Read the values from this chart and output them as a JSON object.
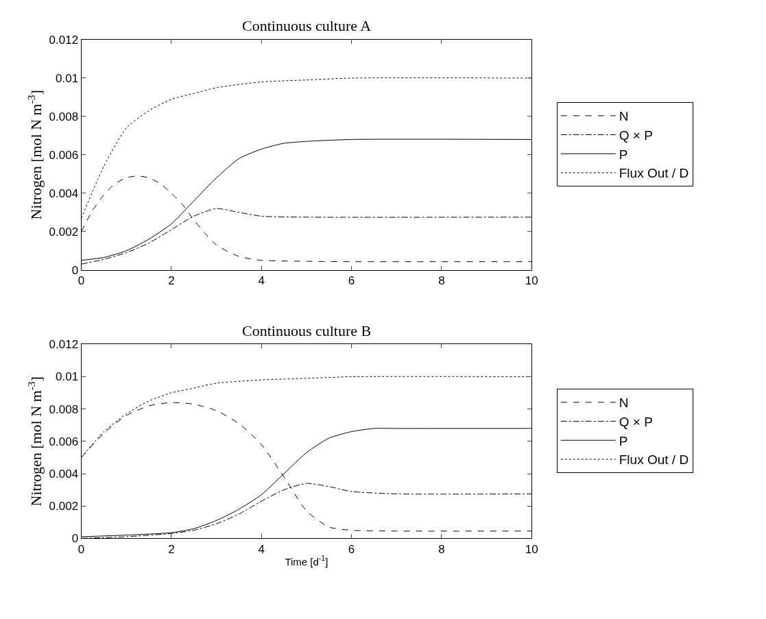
{
  "chart_data": [
    {
      "type": "line",
      "title": "Continuous culture A",
      "ylabel": "Nitrogen [mol N m$^{-3}$]",
      "xlim": [
        0,
        10
      ],
      "xticks": [
        0,
        2,
        4,
        6,
        8,
        10
      ],
      "ylim": [
        0,
        0.012
      ],
      "yticks": [
        0,
        0.002,
        0.004,
        0.006,
        0.008,
        0.01,
        0.012
      ],
      "grid": false,
      "legend": "right",
      "marker": "none",
      "series": [
        {
          "name": "N",
          "color": "#000000",
          "line_style": "dashed",
          "x": [
            0,
            0.25,
            0.5,
            0.75,
            1,
            1.25,
            1.5,
            1.75,
            2,
            2.25,
            2.5,
            2.75,
            3,
            3.5,
            4,
            5,
            6,
            10
          ],
          "values": [
            0.002,
            0.0031,
            0.0039,
            0.0045,
            0.0048,
            0.0049,
            0.0048,
            0.0045,
            0.004,
            0.0034,
            0.0026,
            0.0019,
            0.0013,
            0.0007,
            0.0005,
            0.00045,
            0.00043,
            0.00043
          ]
        },
        {
          "name": "Q × P",
          "color": "#000000",
          "line_style": "dashdot",
          "x": [
            0,
            0.5,
            1,
            1.5,
            2,
            2.5,
            3,
            3.5,
            4,
            5,
            10
          ],
          "values": [
            0.0003,
            0.00055,
            0.0009,
            0.0014,
            0.0021,
            0.0028,
            0.0032,
            0.003,
            0.0028,
            0.00275,
            0.00275
          ]
        },
        {
          "name": "P",
          "color": "#000000",
          "line_style": "solid",
          "x": [
            0,
            0.5,
            1,
            1.5,
            2,
            2.5,
            3,
            3.5,
            4,
            4.5,
            5,
            6,
            10
          ],
          "values": [
            0.0005,
            0.00065,
            0.001,
            0.0016,
            0.0024,
            0.0036,
            0.0048,
            0.0058,
            0.0063,
            0.0066,
            0.0067,
            0.0068,
            0.0068
          ]
        },
        {
          "name": "Flux Out / D",
          "color": "#000000",
          "line_style": "dotted",
          "x": [
            0,
            0.5,
            1,
            1.5,
            2,
            2.5,
            3,
            4,
            5,
            6,
            10
          ],
          "values": [
            0.0027,
            0.0054,
            0.0074,
            0.0083,
            0.0089,
            0.0092,
            0.0095,
            0.0098,
            0.0099,
            0.01,
            0.01
          ]
        }
      ]
    },
    {
      "type": "line",
      "title": "Continuous culture B",
      "xlabel": "Time [d$^{-1}$]",
      "ylabel": "Nitrogen [mol N m$^{-3}$]",
      "xlim": [
        0,
        10
      ],
      "xticks": [
        0,
        2,
        4,
        6,
        8,
        10
      ],
      "ylim": [
        0,
        0.012
      ],
      "yticks": [
        0,
        0.002,
        0.004,
        0.006,
        0.008,
        0.01,
        0.012
      ],
      "grid": false,
      "legend": "right",
      "marker": "none",
      "series": [
        {
          "name": "N",
          "color": "#000000",
          "line_style": "dashed",
          "x": [
            0,
            0.5,
            1,
            1.5,
            2,
            2.5,
            3,
            3.5,
            4,
            4.5,
            5,
            5.5,
            6,
            7,
            10
          ],
          "values": [
            0.005,
            0.0065,
            0.0076,
            0.0082,
            0.0084,
            0.0083,
            0.0079,
            0.0071,
            0.0058,
            0.0038,
            0.0017,
            0.0007,
            0.0005,
            0.00045,
            0.00045
          ]
        },
        {
          "name": "Q × P",
          "color": "#000000",
          "line_style": "dashdot",
          "x": [
            0,
            1,
            2,
            2.5,
            3,
            3.5,
            4,
            4.5,
            5,
            5.5,
            6,
            7,
            10
          ],
          "values": [
            0,
            0.0001,
            0.0003,
            0.0005,
            0.0009,
            0.0015,
            0.0023,
            0.003,
            0.0034,
            0.0032,
            0.0029,
            0.00275,
            0.00275
          ]
        },
        {
          "name": "P",
          "color": "#000000",
          "line_style": "solid",
          "x": [
            0,
            1,
            2,
            2.5,
            3,
            3.5,
            4,
            4.5,
            5,
            5.5,
            6,
            6.5,
            7,
            10
          ],
          "values": [
            0.0001,
            0.0002,
            0.00035,
            0.0006,
            0.0011,
            0.0018,
            0.0027,
            0.004,
            0.0053,
            0.0062,
            0.0066,
            0.0068,
            0.0068,
            0.0068
          ]
        },
        {
          "name": "Flux Out / D",
          "color": "#000000",
          "line_style": "dotted",
          "x": [
            0,
            0.5,
            1,
            1.5,
            2,
            2.5,
            3,
            4,
            5,
            6,
            10
          ],
          "values": [
            0.005,
            0.0066,
            0.0077,
            0.0085,
            0.009,
            0.0093,
            0.0096,
            0.0098,
            0.0099,
            0.01,
            0.01
          ]
        }
      ]
    }
  ]
}
